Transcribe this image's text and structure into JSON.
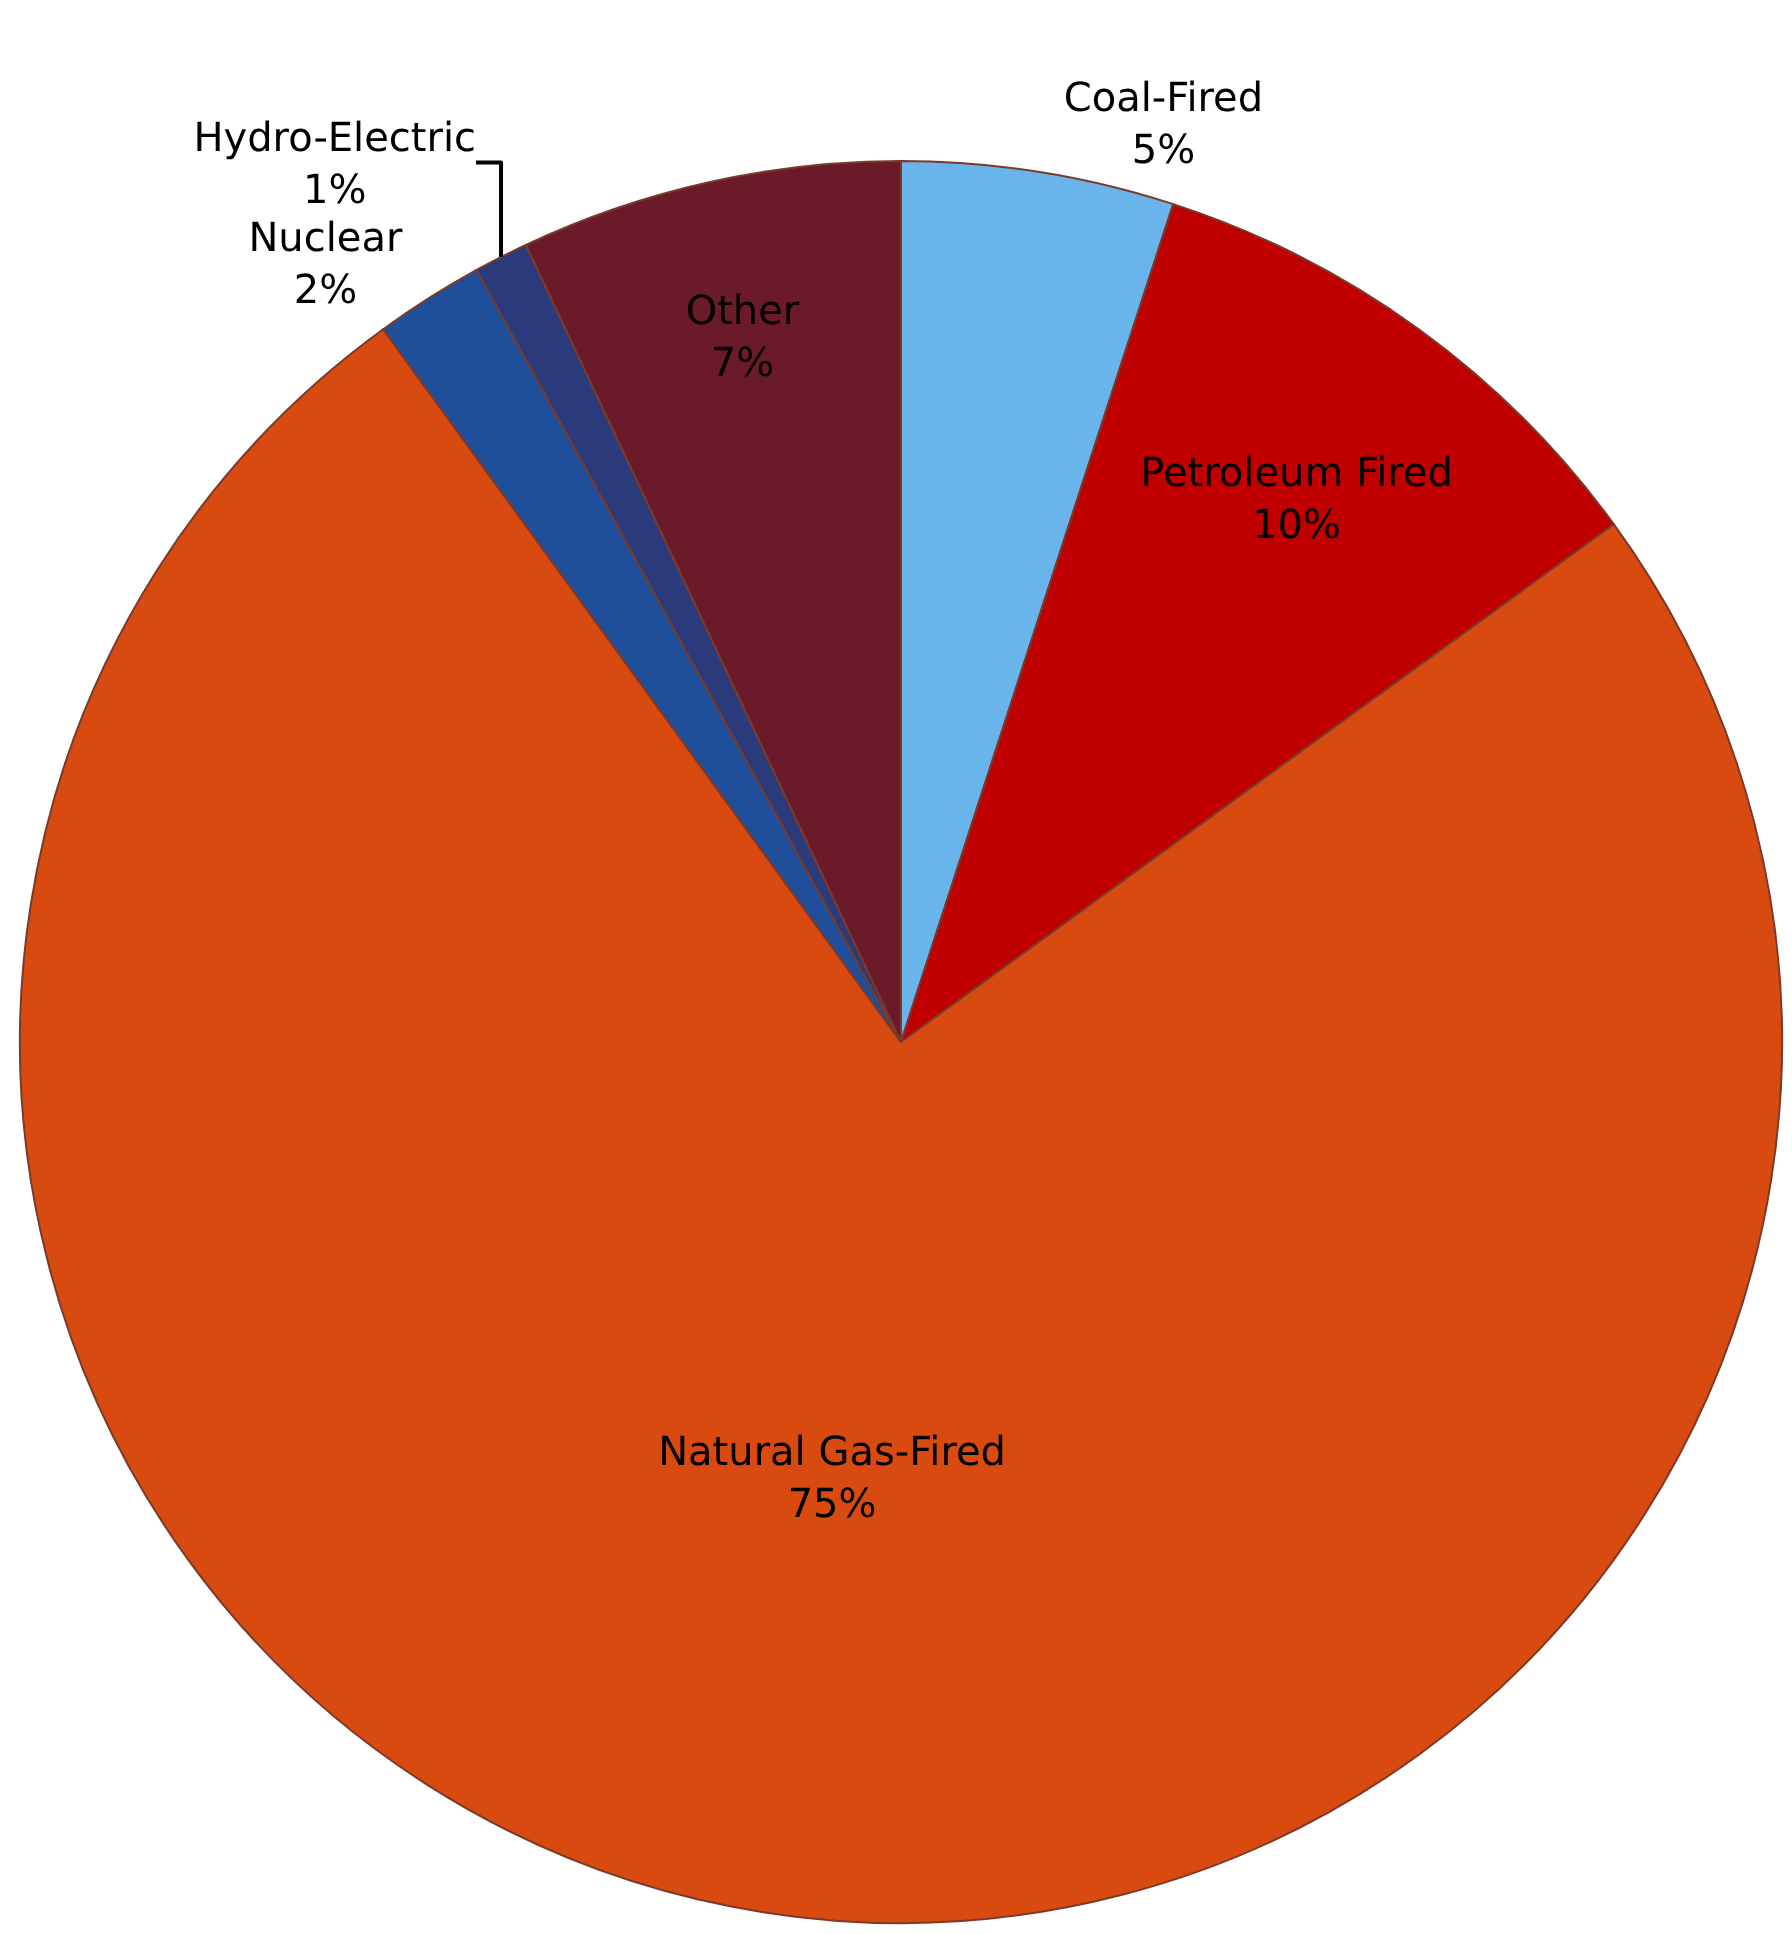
{
  "chart_data": {
    "type": "pie",
    "categories": [
      "Coal-Fired",
      "Petroleum Fired",
      "Natural Gas-Fired",
      "Nuclear",
      "Hydro-Electric",
      "Other"
    ],
    "values": [
      5,
      10,
      75,
      2,
      1,
      7
    ],
    "value_labels": [
      "5%",
      "10%",
      "75%",
      "2%",
      "1%",
      "7%"
    ],
    "colors": [
      "#6ab4ec",
      "#c00000",
      "#d94a10",
      "#1f4f9a",
      "#2a3a7a",
      "#6b1a2a"
    ],
    "legend": false
  }
}
